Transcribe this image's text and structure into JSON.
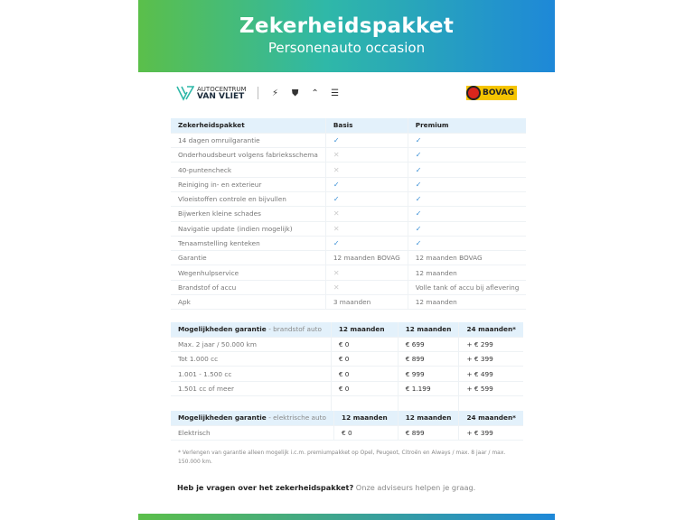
{
  "banner": {
    "title": "Zekerheidspakket",
    "subtitle": "Personenauto occasion"
  },
  "logos": {
    "dealer_line1": "AUTOCENTRUM",
    "dealer_line2": "VAN VLIET",
    "bovag": "BOVAG",
    "brands": [
      "opel-icon",
      "peugeot-icon",
      "citroen-icon",
      "ds-icon"
    ]
  },
  "colors": {
    "gradient_start": "#5bbf4a",
    "gradient_end": "#1e88d8",
    "header_row": "#e3f1fb",
    "check": "#3a8fd6"
  },
  "package_table": {
    "headers": [
      "Zekerheidspakket",
      "Basis",
      "Premium"
    ],
    "rows": [
      {
        "label": "14 dagen omruilgarantie",
        "basis": "check",
        "premium": "check"
      },
      {
        "label": "Onderhoudsbeurt volgens fabrieksschema",
        "basis": "cross",
        "premium": "check"
      },
      {
        "label": "40-puntencheck",
        "basis": "cross",
        "premium": "check"
      },
      {
        "label": "Reiniging in- en exterieur",
        "basis": "check",
        "premium": "check"
      },
      {
        "label": "Vloeistoffen controle en bijvullen",
        "basis": "check",
        "premium": "check"
      },
      {
        "label": "Bijwerken kleine schades",
        "basis": "cross",
        "premium": "check"
      },
      {
        "label": "Navigatie update (indien mogelijk)",
        "basis": "cross",
        "premium": "check"
      },
      {
        "label": "Tenaamstelling kenteken",
        "basis": "check",
        "premium": "check"
      },
      {
        "label": "Garantie",
        "basis": "12 maanden BOVAG",
        "premium": "12 maanden BOVAG"
      },
      {
        "label": "Wegenhulpservice",
        "basis": "cross",
        "premium": "12 maanden"
      },
      {
        "label": "Brandstof of accu",
        "basis": "cross",
        "premium": "Volle tank of accu bij aflevering"
      },
      {
        "label": "Apk",
        "basis": "3 maanden",
        "premium": "12 maanden"
      }
    ]
  },
  "fuel_table": {
    "title": "Mogelijkheden garantie",
    "subtitle": "- brandstof auto",
    "headers": [
      "12 maanden",
      "12 maanden",
      "24 maanden*"
    ],
    "rows": [
      [
        "Max. 2 jaar / 50.000 km",
        "€ 0",
        "€ 699",
        "+ € 299"
      ],
      [
        "Tot 1.000 cc",
        "€ 0",
        "€ 899",
        "+ € 399"
      ],
      [
        "1.001 - 1.500 cc",
        "€ 0",
        "€ 999",
        "+ € 499"
      ],
      [
        "1.501 cc of meer",
        "€ 0",
        "€ 1.199",
        "+ € 599"
      ]
    ]
  },
  "electric_table": {
    "title": "Mogelijkheden garantie",
    "subtitle": "- elektrische auto",
    "headers": [
      "12 maanden",
      "12 maanden",
      "24 maanden*"
    ],
    "rows": [
      [
        "Elektrisch",
        "€ 0",
        "€ 899",
        "+ € 399"
      ]
    ]
  },
  "footnote": "* Verlengen van garantie alleen mogelijk i.c.m. premiumpakket op Opel, Peugeot, Citroën en Aiways / max. 8 jaar / max. 150.000 km.",
  "question": {
    "bold": "Heb je vragen over het zekerheidspakket?",
    "rest": " Onze adviseurs helpen je graag."
  }
}
